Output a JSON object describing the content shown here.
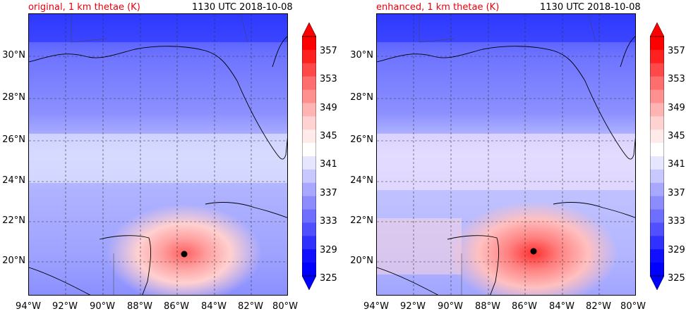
{
  "panels": [
    {
      "id": "original",
      "title_left": "original, 1 km thetae (K)",
      "title_right": "1130 UTC 2018-10-08",
      "storm_center": {
        "lon": -85.6,
        "lat": 20.4
      }
    },
    {
      "id": "enhanced",
      "title_left": "enhanced, 1 km thetae (K)",
      "title_right": "1130 UTC 2018-10-08",
      "storm_center": {
        "lon": -85.5,
        "lat": 20.5
      }
    }
  ],
  "lat_ticks": [
    "30°N",
    "28°N",
    "26°N",
    "24°N",
    "22°N",
    "20°N"
  ],
  "lon_ticks": [
    "94°W",
    "92°W",
    "90°W",
    "88°W",
    "86°W",
    "84°W",
    "82°W",
    "80°W"
  ],
  "colorbar": {
    "labels": [
      "357",
      "353",
      "349",
      "345",
      "341",
      "337",
      "333",
      "329",
      "325"
    ],
    "colors": [
      "#ff0000",
      "#ff2020",
      "#ff4848",
      "#ff6e6e",
      "#ff9090",
      "#ffb4b4",
      "#ffd2d2",
      "#ffeaea",
      "#ffffff",
      "#e6e6ff",
      "#c8c8ff",
      "#a8a8ff",
      "#8c8cff",
      "#6e6eff",
      "#5050ff",
      "#3030ff",
      "#1010ff",
      "#0000ff"
    ]
  },
  "chart_data": {
    "type": "heatmap",
    "x_range_deg_lon": [
      -94,
      -80
    ],
    "y_range_deg_lat": [
      18,
      32
    ],
    "colorbar_range": [
      325,
      357
    ],
    "colormap": "bwr",
    "variables": "1 km thetae (K)"
  }
}
